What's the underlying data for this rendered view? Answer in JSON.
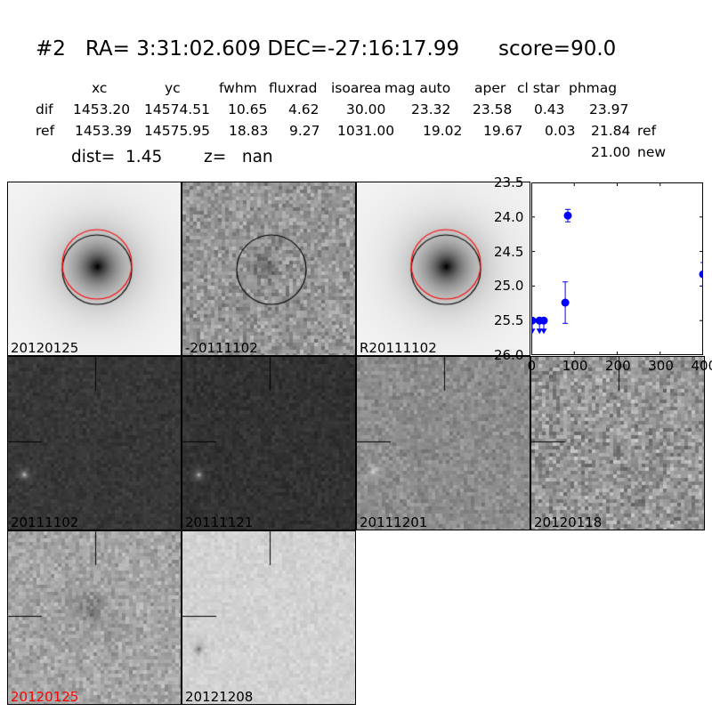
{
  "header": {
    "title": "#2   RA= 3:31:02.609 DEC=-27:16:17.99      score=90.0"
  },
  "table": {
    "columns": [
      "xc",
      "yc",
      "fwhm",
      "fluxrad",
      "isoarea",
      "mag auto",
      "aper",
      "cl star",
      "phmag"
    ],
    "rows": [
      {
        "label": "dif",
        "values": [
          "1453.20",
          "14574.51",
          "10.65",
          "4.62",
          "30.00",
          "23.32",
          "23.58",
          "0.43",
          "23.97"
        ],
        "suffix": ""
      },
      {
        "label": "ref",
        "values": [
          "1453.39",
          "14575.95",
          "18.83",
          "9.27",
          "1031.00",
          "19.02",
          "19.67",
          "0.03",
          "21.84"
        ],
        "suffix": "ref"
      }
    ],
    "extra": {
      "value": "21.00",
      "suffix": "new"
    },
    "dist": "dist=  1.45",
    "z": "z=   nan"
  },
  "panels": [
    {
      "label": "20120125",
      "bg": 245,
      "noise": 10,
      "galaxy": true,
      "circle": true,
      "red": true
    },
    {
      "label": "-20111102",
      "bg": 150,
      "noise": 45,
      "galaxy": false,
      "circle": true,
      "red": false
    },
    {
      "label": "R20111102",
      "bg": 245,
      "noise": 10,
      "galaxy": true,
      "circle": true,
      "red": true
    },
    {
      "label": "20111102",
      "bg": 55,
      "noise": 14,
      "cross": true
    },
    {
      "label": "20111121",
      "bg": 50,
      "noise": 14,
      "cross": true
    },
    {
      "label": "20111201",
      "bg": 140,
      "noise": 28,
      "cross": true
    },
    {
      "label": "20120118",
      "bg": 150,
      "noise": 55,
      "cross": true
    },
    {
      "label": "20120125",
      "bg": 165,
      "noise": 35,
      "cross": true,
      "labelColor": "#ff0000"
    },
    {
      "label": "20121208",
      "bg": 210,
      "noise": 14,
      "cross": true
    }
  ],
  "chart_data": {
    "type": "scatter",
    "xlim": [
      0,
      400
    ],
    "ylim": [
      26.0,
      23.5
    ],
    "y_inverted": true,
    "xticks": [
      "0",
      "100",
      "200",
      "300",
      "400"
    ],
    "yticks": [
      "23.5",
      "24.0",
      "24.5",
      "25.0",
      "25.5",
      "26.0"
    ],
    "color": "#0000ff",
    "detections": [
      {
        "x": 79,
        "y": 25.24,
        "err": 0.3
      },
      {
        "x": 85,
        "y": 23.98,
        "err": 0.09
      },
      {
        "x": 400,
        "y": 24.83,
        "err": 0.17
      }
    ],
    "upper_limits": [
      {
        "x": 2,
        "y": 25.5
      },
      {
        "x": 19,
        "y": 25.5
      },
      {
        "x": 29,
        "y": 25.5
      }
    ]
  }
}
